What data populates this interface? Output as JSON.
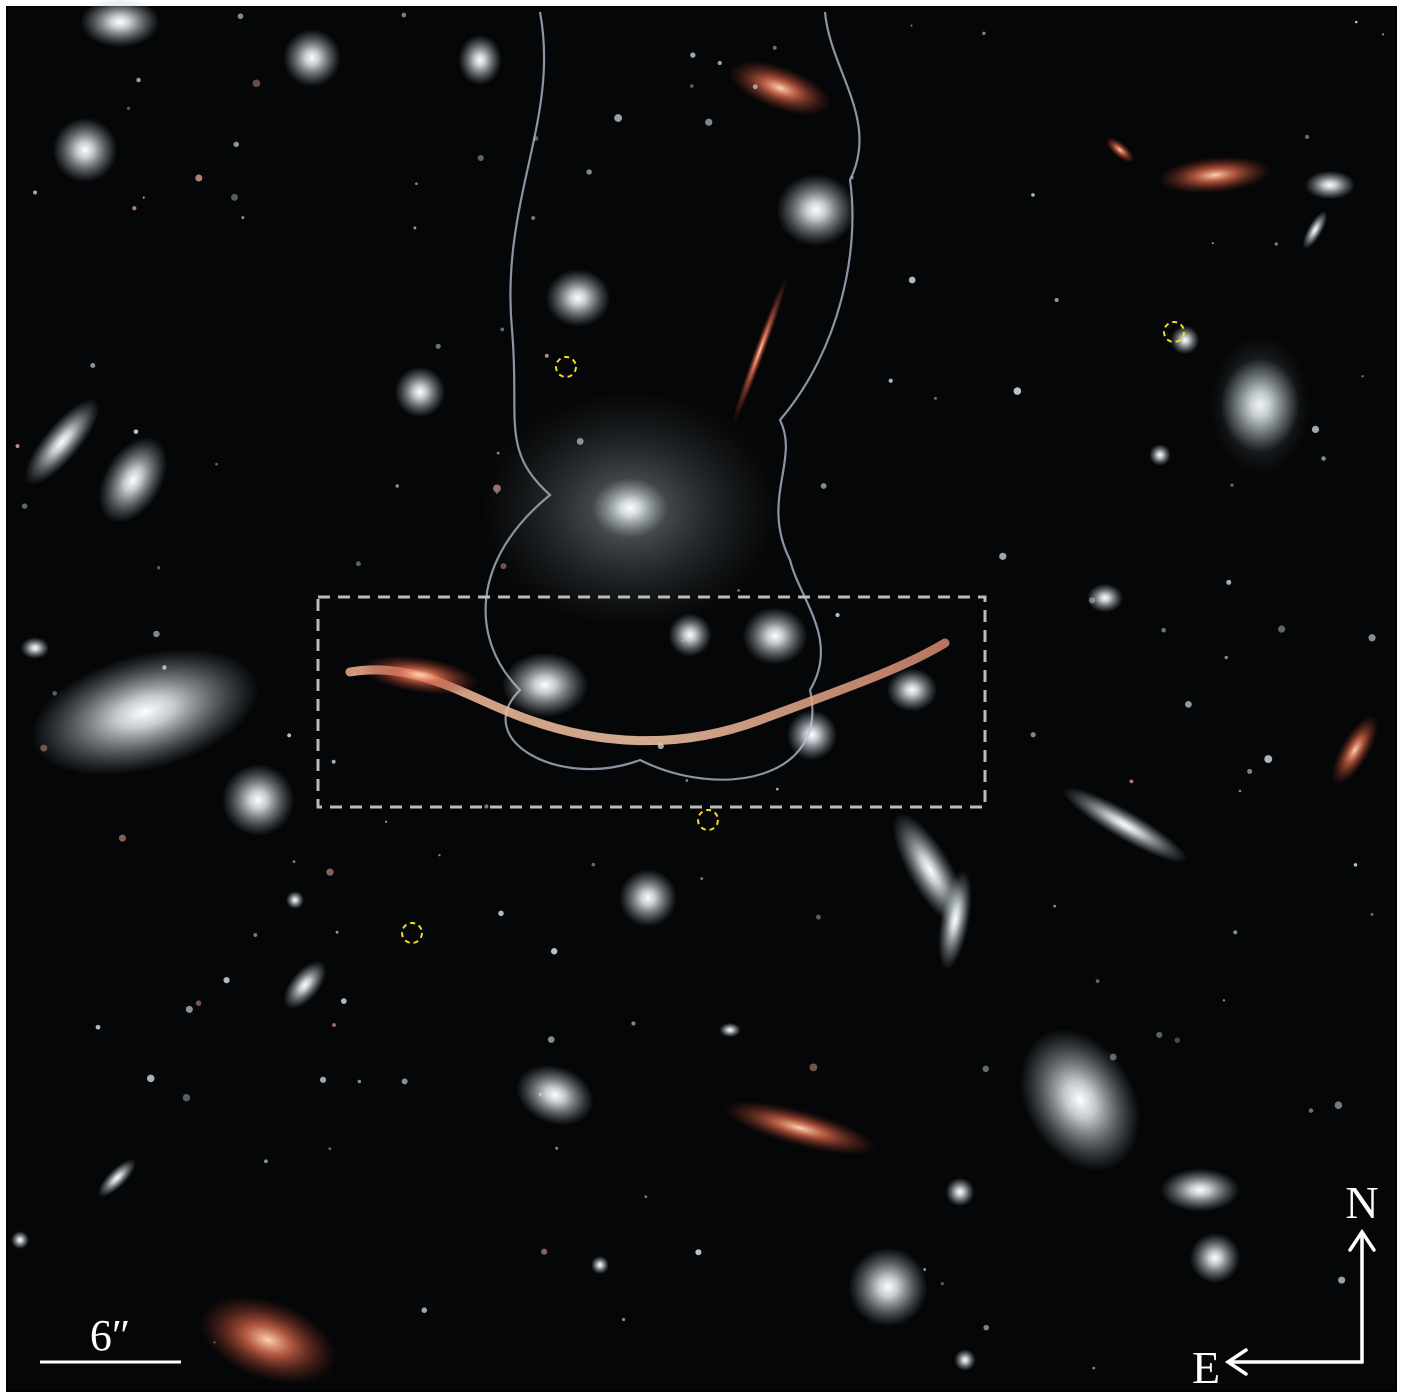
{
  "scale_bar": {
    "label": "6″"
  },
  "compass": {
    "north": "N",
    "east": "E"
  }
}
